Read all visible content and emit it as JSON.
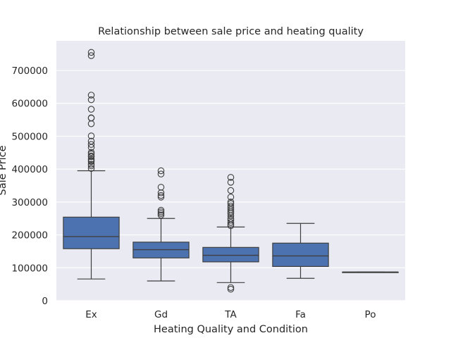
{
  "chart_data": {
    "type": "box",
    "title": "Relationship between sale price and heating quality",
    "xlabel": "Heating Quality and Condition",
    "ylabel": "Sale Price",
    "categories": [
      "Ex",
      "Gd",
      "TA",
      "Fa",
      "Po"
    ],
    "ylim": [
      0,
      790000
    ],
    "yticks": [
      0,
      100000,
      200000,
      300000,
      400000,
      500000,
      600000,
      700000
    ],
    "ytick_labels": [
      "0",
      "100000",
      "200000",
      "300000",
      "400000",
      "500000",
      "600000",
      "700000"
    ],
    "grid": true,
    "box_color": "#4c72b0",
    "background_color": "#eaeaf2",
    "series": [
      {
        "category": "Ex",
        "whisker_low": 66000,
        "q1": 158000,
        "median": 195000,
        "q3": 254000,
        "whisker_high": 395000,
        "outliers": [
          755000,
          745000,
          625000,
          611000,
          582000,
          556000,
          555000,
          538000,
          501000,
          485000,
          475000,
          466000,
          451000,
          446000,
          440000,
          438000,
          430000,
          426000,
          423000,
          415000,
          410000,
          402000
        ]
      },
      {
        "category": "Gd",
        "whisker_low": 60000,
        "q1": 130000,
        "median": 155000,
        "q3": 178000,
        "whisker_high": 250000,
        "outliers": [
          395000,
          385000,
          345000,
          328000,
          320000,
          315000,
          275000,
          270000,
          265000,
          260000
        ]
      },
      {
        "category": "TA",
        "whisker_low": 55000,
        "q1": 118000,
        "median": 138000,
        "q3": 162000,
        "whisker_high": 224000,
        "outliers": [
          375000,
          360000,
          335000,
          315000,
          300000,
          295000,
          288000,
          282000,
          276000,
          270000,
          265000,
          258000,
          250000,
          245000,
          238000,
          232000,
          228000,
          40000,
          35000
        ]
      },
      {
        "category": "Fa",
        "whisker_low": 68000,
        "q1": 104000,
        "median": 136000,
        "q3": 175000,
        "whisker_high": 235000,
        "outliers": []
      },
      {
        "category": "Po",
        "whisker_low": 87000,
        "q1": 87000,
        "median": 87000,
        "q3": 87000,
        "whisker_high": 87000,
        "outliers": []
      }
    ]
  }
}
